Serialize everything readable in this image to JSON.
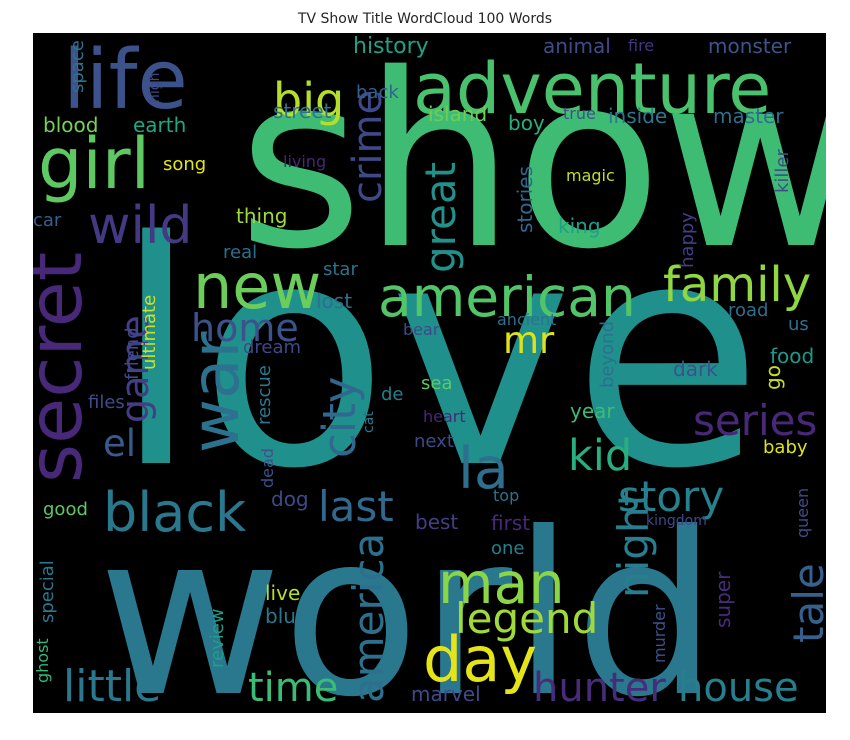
{
  "title": "TV Show Title WordCloud 100 Words",
  "colors": {
    "background": "#000000",
    "page": "#ffffff",
    "title_text": "#262626"
  },
  "words": [
    {
      "text": "show",
      "color": "#3fbc73"
    },
    {
      "text": "love",
      "color": "#20908d"
    },
    {
      "text": "world",
      "color": "#2a788e"
    },
    {
      "text": "life",
      "color": "#3b528b"
    },
    {
      "text": "adventure",
      "color": "#4ac16d"
    },
    {
      "text": "girl",
      "color": "#5ec962"
    },
    {
      "text": "wild",
      "color": "#443983"
    },
    {
      "text": "big",
      "color": "#b5de2b"
    },
    {
      "text": "secret",
      "color": "#482979"
    },
    {
      "text": "war",
      "color": "#2c728e"
    },
    {
      "text": "new",
      "color": "#6ccd5a"
    },
    {
      "text": "american",
      "color": "#52c569"
    },
    {
      "text": "family",
      "color": "#90d743"
    },
    {
      "text": "great",
      "color": "#21918c"
    },
    {
      "text": "crime",
      "color": "#3e4989"
    },
    {
      "text": "black",
      "color": "#2a788e"
    },
    {
      "text": "city",
      "color": "#31688e"
    },
    {
      "text": "la",
      "color": "#2e6e8e"
    },
    {
      "text": "mr",
      "color": "#dde318"
    },
    {
      "text": "game",
      "color": "#433e85"
    },
    {
      "text": "home",
      "color": "#3b528b"
    },
    {
      "text": "el",
      "color": "#375b8d"
    },
    {
      "text": "kid",
      "color": "#29af7f"
    },
    {
      "text": "series",
      "color": "#482878"
    },
    {
      "text": "story",
      "color": "#26828e"
    },
    {
      "text": "last",
      "color": "#31688e"
    },
    {
      "text": "man",
      "color": "#8bd646"
    },
    {
      "text": "day",
      "color": "#e5e419"
    },
    {
      "text": "night",
      "color": "#287d8e"
    },
    {
      "text": "america",
      "color": "#2d708e"
    },
    {
      "text": "legend",
      "color": "#9fda3a"
    },
    {
      "text": "tale",
      "color": "#34618d"
    },
    {
      "text": "little",
      "color": "#2a788e"
    },
    {
      "text": "time",
      "color": "#3bbb75"
    },
    {
      "text": "hunter",
      "color": "#472c7a"
    },
    {
      "text": "house",
      "color": "#277f8e"
    },
    {
      "text": "history",
      "color": "#1fa188"
    },
    {
      "text": "animal",
      "color": "#3e4c8a"
    },
    {
      "text": "fire",
      "color": "#453581"
    },
    {
      "text": "monster",
      "color": "#39558c"
    },
    {
      "text": "space",
      "color": "#2c728e"
    },
    {
      "text": "high",
      "color": "#3f4788"
    },
    {
      "text": "back",
      "color": "#34618d"
    },
    {
      "text": "island",
      "color": "#6ccd5a"
    },
    {
      "text": "true",
      "color": "#3b528b"
    },
    {
      "text": "inside",
      "color": "#2a788e"
    },
    {
      "text": "master",
      "color": "#2e6e8e"
    },
    {
      "text": "street",
      "color": "#2c728e"
    },
    {
      "text": "boy",
      "color": "#29af7f"
    },
    {
      "text": "blood",
      "color": "#77d153"
    },
    {
      "text": "earth",
      "color": "#21a685"
    },
    {
      "text": "song",
      "color": "#e5e419"
    },
    {
      "text": "living",
      "color": "#482576"
    },
    {
      "text": "stories",
      "color": "#31688e"
    },
    {
      "text": "magic",
      "color": "#c2df23"
    },
    {
      "text": "king",
      "color": "#1fa188"
    },
    {
      "text": "killer",
      "color": "#3e4c8a"
    },
    {
      "text": "car",
      "color": "#34618d"
    },
    {
      "text": "thing",
      "color": "#9fda3a"
    },
    {
      "text": "real",
      "color": "#2d708e"
    },
    {
      "text": "star",
      "color": "#2c728e"
    },
    {
      "text": "happy",
      "color": "#433e85"
    },
    {
      "text": "lost",
      "color": "#2e6e8e"
    },
    {
      "text": "friend",
      "color": "#3e4a89"
    },
    {
      "text": "ultimate",
      "color": "#cde11d"
    },
    {
      "text": "bear",
      "color": "#3e4a89"
    },
    {
      "text": "ancient",
      "color": "#2c728e"
    },
    {
      "text": "road",
      "color": "#2e6e8e"
    },
    {
      "text": "us",
      "color": "#2e6e8e"
    },
    {
      "text": "dream",
      "color": "#3e4989"
    },
    {
      "text": "beyond",
      "color": "#2d708e"
    },
    {
      "text": "food",
      "color": "#1f988b"
    },
    {
      "text": "go",
      "color": "#c8e020"
    },
    {
      "text": "dark",
      "color": "#3b528b"
    },
    {
      "text": "rescue",
      "color": "#2a788e"
    },
    {
      "text": "files",
      "color": "#3e4c8a"
    },
    {
      "text": "de",
      "color": "#277f8e"
    },
    {
      "text": "sea",
      "color": "#5ec962"
    },
    {
      "text": "cat",
      "color": "#2a788e"
    },
    {
      "text": "heart",
      "color": "#482878"
    },
    {
      "text": "year",
      "color": "#3bbb75"
    },
    {
      "text": "next",
      "color": "#3e4989"
    },
    {
      "text": "dead",
      "color": "#3b528b"
    },
    {
      "text": "baby",
      "color": "#dde318"
    },
    {
      "text": "good",
      "color": "#5ec962"
    },
    {
      "text": "dog",
      "color": "#3e4989"
    },
    {
      "text": "best",
      "color": "#433e85"
    },
    {
      "text": "first",
      "color": "#482878"
    },
    {
      "text": "top",
      "color": "#2c728e"
    },
    {
      "text": "kingdom",
      "color": "#3e4a89"
    },
    {
      "text": "queen",
      "color": "#3e4c8a"
    },
    {
      "text": "one",
      "color": "#277f8e"
    },
    {
      "text": "special",
      "color": "#2a788e"
    },
    {
      "text": "ghost",
      "color": "#35b779"
    },
    {
      "text": "review",
      "color": "#1f9e89"
    },
    {
      "text": "live",
      "color": "#b5de2b"
    },
    {
      "text": "blue",
      "color": "#2a788e"
    },
    {
      "text": "super",
      "color": "#472c7a"
    },
    {
      "text": "murder",
      "color": "#3b528b"
    },
    {
      "text": "marvel",
      "color": "#3e4a89"
    }
  ]
}
